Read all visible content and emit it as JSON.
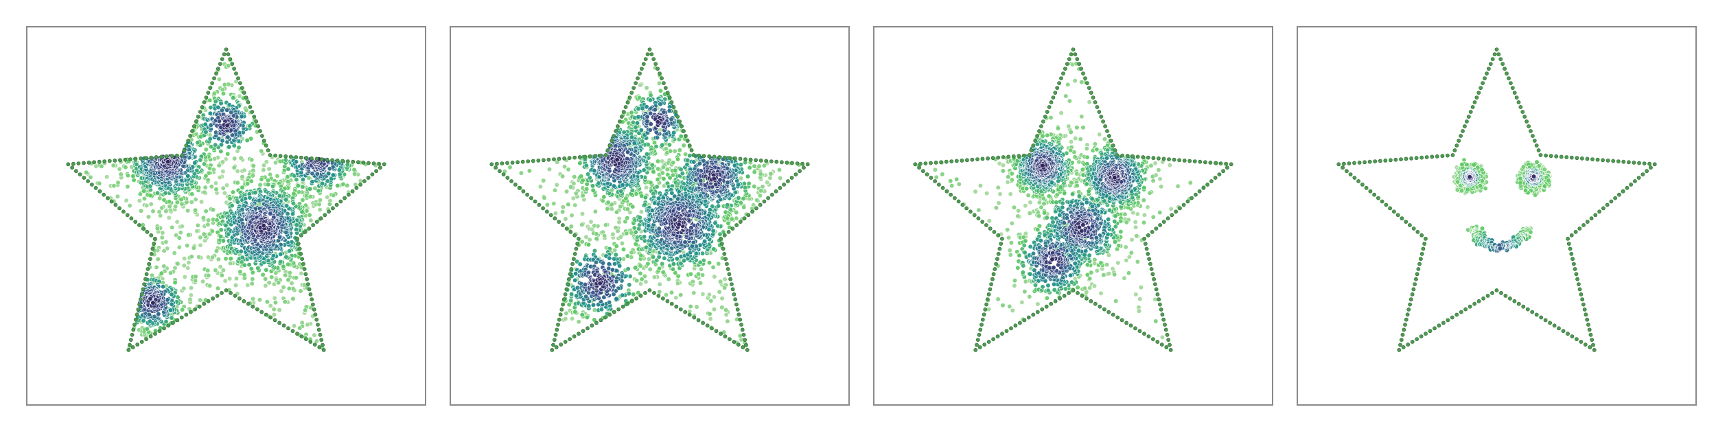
{
  "chart_data": [
    {
      "type": "scatter",
      "title": "",
      "xlabel": "",
      "ylabel": "",
      "grid": false,
      "legend": "none",
      "xlim": [
        -1.0,
        1.0
      ],
      "ylim": [
        -1.0,
        1.0
      ],
      "outline": {
        "shape": "five-pointed star",
        "color": "#4f9a52",
        "point_count": 220
      },
      "colormap": [
        "#2f1f5c",
        "#3b528b",
        "#21918c",
        "#5ec962",
        "#a8d9a0"
      ],
      "point_style": {
        "edge_color": "#ffffff"
      },
      "series": [
        {
          "clusters": [
            {
              "x": -0.35,
              "y": 0.28,
              "spread": 0.12,
              "n": 700
            },
            {
              "x": 0.22,
              "y": -0.12,
              "spread": 0.14,
              "n": 850
            },
            {
              "x": 0.55,
              "y": 0.3,
              "spread": 0.11,
              "n": 420
            },
            {
              "x": -0.44,
              "y": -0.57,
              "spread": 0.09,
              "n": 300
            },
            {
              "x": 0.0,
              "y": 0.5,
              "spread": 0.09,
              "n": 220
            }
          ],
          "background_points": 550
        }
      ]
    },
    {
      "type": "scatter",
      "title": "",
      "xlabel": "",
      "ylabel": "",
      "grid": false,
      "legend": "none",
      "xlim": [
        -1.0,
        1.0
      ],
      "ylim": [
        -1.0,
        1.0
      ],
      "outline": {
        "shape": "five-pointed star",
        "color": "#4f9a52",
        "point_count": 220
      },
      "colormap": [
        "#2f1f5c",
        "#3b528b",
        "#21918c",
        "#5ec962",
        "#a8d9a0"
      ],
      "point_style": {
        "edge_color": "#ffffff"
      },
      "series": [
        {
          "clusters": [
            {
              "x": -0.2,
              "y": 0.28,
              "spread": 0.12,
              "n": 650
            },
            {
              "x": 0.18,
              "y": -0.1,
              "spread": 0.15,
              "n": 800
            },
            {
              "x": 0.38,
              "y": 0.18,
              "spread": 0.12,
              "n": 480
            },
            {
              "x": -0.3,
              "y": -0.45,
              "spread": 0.12,
              "n": 320
            },
            {
              "x": 0.05,
              "y": 0.52,
              "spread": 0.09,
              "n": 200
            }
          ],
          "background_points": 420
        }
      ]
    },
    {
      "type": "scatter",
      "title": "",
      "xlabel": "",
      "ylabel": "",
      "grid": false,
      "legend": "none",
      "xlim": [
        -1.0,
        1.0
      ],
      "ylim": [
        -1.0,
        1.0
      ],
      "outline": {
        "shape": "five-pointed star",
        "color": "#4f9a52",
        "point_count": 220
      },
      "colormap": [
        "#2f1f5c",
        "#3b528b",
        "#21918c",
        "#5ec962",
        "#a8d9a0"
      ],
      "point_style": {
        "edge_color": "#ffffff"
      },
      "series": [
        {
          "clusters": [
            {
              "x": -0.18,
              "y": 0.25,
              "spread": 0.09,
              "n": 600
            },
            {
              "x": 0.25,
              "y": 0.18,
              "spread": 0.1,
              "n": 600
            },
            {
              "x": 0.05,
              "y": -0.12,
              "spread": 0.12,
              "n": 520
            },
            {
              "x": -0.12,
              "y": -0.32,
              "spread": 0.11,
              "n": 380
            }
          ],
          "background_points": 180
        }
      ]
    },
    {
      "type": "scatter",
      "title": "",
      "xlabel": "",
      "ylabel": "",
      "grid": false,
      "legend": "none",
      "xlim": [
        -1.0,
        1.0
      ],
      "ylim": [
        -1.0,
        1.0
      ],
      "outline": {
        "shape": "five-pointed star",
        "color": "#4f9a52",
        "point_count": 220
      },
      "colormap": [
        "#2f1f5c",
        "#3b528b",
        "#21918c",
        "#5ec962",
        "#a8d9a0"
      ],
      "point_style": {
        "edge_color": "#ffffff"
      },
      "series": [
        {
          "name": "eyes",
          "clusters": [
            {
              "x": -0.16,
              "y": 0.18,
              "spread": 0.028,
              "n": 220
            },
            {
              "x": 0.22,
              "y": 0.18,
              "spread": 0.028,
              "n": 220
            }
          ],
          "rings": [
            {
              "x": -0.16,
              "y": 0.18,
              "r": 0.08,
              "n": 140
            },
            {
              "x": 0.22,
              "y": 0.18,
              "r": 0.08,
              "n": 140
            }
          ]
        },
        {
          "name": "smile",
          "arc": {
            "x": 0.02,
            "y": -0.06,
            "r": 0.18,
            "start_deg": 200,
            "end_deg": 340,
            "n": 240
          }
        }
      ]
    }
  ]
}
